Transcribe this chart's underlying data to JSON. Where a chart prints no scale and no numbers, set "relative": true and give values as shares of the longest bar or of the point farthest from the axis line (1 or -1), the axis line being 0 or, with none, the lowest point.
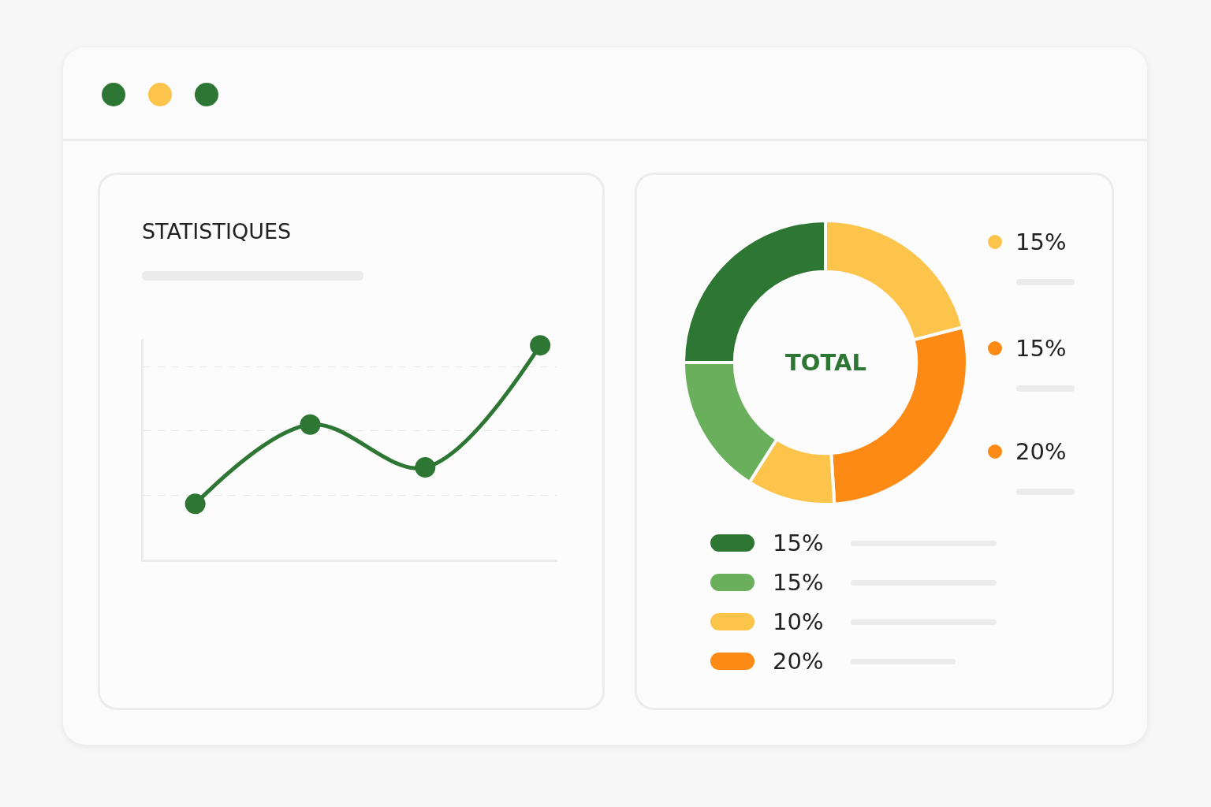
{
  "chart_data": [
    {
      "type": "line",
      "title": "STATISTIQUES",
      "categories": [
        null,
        null,
        null,
        null
      ],
      "relative": true,
      "series": [
        {
          "color": "#2e7634",
          "values": [
            0.26,
            0.63,
            0.43,
            1
          ]
        }
      ],
      "grid": true,
      "marker": "circle",
      "line_style": "solid"
    },
    {
      "type": "donut",
      "categories": [
        null,
        null,
        null,
        null,
        null
      ],
      "values": [
        21,
        28,
        10,
        16,
        25
      ],
      "colors": [
        "#fdc44c",
        "#fd8a14",
        "#fdc44c",
        "#6aaf5c",
        "#2e7634"
      ],
      "annotations": [
        "TOTAL",
        "15%",
        "15%",
        "20%",
        "15%",
        "15%",
        "10%",
        "20%"
      ]
    }
  ]
}
